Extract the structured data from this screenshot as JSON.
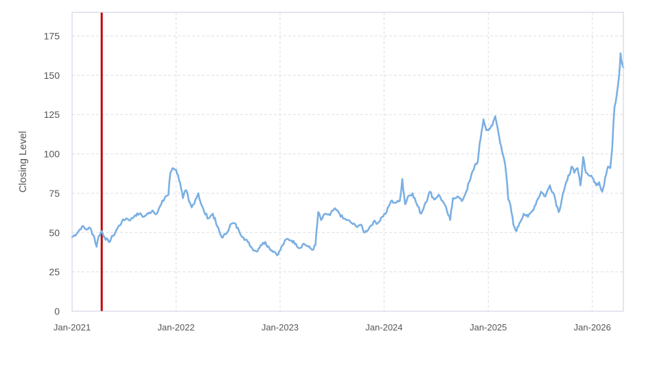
{
  "chart_data": {
    "type": "line",
    "title": "",
    "xlabel": "",
    "ylabel": "Closing Level",
    "xlim": [
      "2021-01-01",
      "2026-04-20"
    ],
    "ylim": [
      0,
      190
    ],
    "yticks": [
      0,
      25,
      50,
      75,
      100,
      125,
      150,
      175
    ],
    "xticks": [
      {
        "date": "2021-01-01",
        "label": "Jan-2021"
      },
      {
        "date": "2022-01-01",
        "label": "Jan-2022"
      },
      {
        "date": "2023-01-01",
        "label": "Jan-2023"
      },
      {
        "date": "2024-01-01",
        "label": "Jan-2024"
      },
      {
        "date": "2025-01-01",
        "label": "Jan-2025"
      },
      {
        "date": "2026-01-01",
        "label": "Jan-2026"
      }
    ],
    "grid": true,
    "legend": "none",
    "marker_line": {
      "date": "2021-04-15",
      "color": "#c00000"
    },
    "series": [
      {
        "color": "#7aafe3",
        "points": [
          [
            "2021-01-01",
            47
          ],
          [
            "2021-01-20",
            50
          ],
          [
            "2021-02-05",
            54
          ],
          [
            "2021-02-20",
            52
          ],
          [
            "2021-03-05",
            53
          ],
          [
            "2021-03-20",
            47
          ],
          [
            "2021-03-28",
            41
          ],
          [
            "2021-04-05",
            48
          ],
          [
            "2021-04-15",
            51
          ],
          [
            "2021-04-25",
            47
          ],
          [
            "2021-05-10",
            44
          ],
          [
            "2021-05-25",
            48
          ],
          [
            "2021-06-10",
            53
          ],
          [
            "2021-06-25",
            57
          ],
          [
            "2021-07-10",
            59
          ],
          [
            "2021-07-25",
            58
          ],
          [
            "2021-08-10",
            61
          ],
          [
            "2021-08-25",
            62
          ],
          [
            "2021-09-10",
            60
          ],
          [
            "2021-09-25",
            62
          ],
          [
            "2021-10-10",
            64
          ],
          [
            "2021-10-25",
            62
          ],
          [
            "2021-11-10",
            68
          ],
          [
            "2021-11-25",
            73
          ],
          [
            "2021-12-05",
            74
          ],
          [
            "2021-12-12",
            88
          ],
          [
            "2021-12-20",
            91
          ],
          [
            "2022-01-01",
            90
          ],
          [
            "2022-01-15",
            82
          ],
          [
            "2022-01-25",
            72
          ],
          [
            "2022-02-05",
            77
          ],
          [
            "2022-02-15",
            70
          ],
          [
            "2022-02-25",
            66
          ],
          [
            "2022-03-10",
            71
          ],
          [
            "2022-03-20",
            75
          ],
          [
            "2022-03-30",
            68
          ],
          [
            "2022-04-10",
            63
          ],
          [
            "2022-04-25",
            59
          ],
          [
            "2022-05-10",
            62
          ],
          [
            "2022-05-25",
            54
          ],
          [
            "2022-06-10",
            47
          ],
          [
            "2022-06-25",
            49
          ],
          [
            "2022-07-10",
            55
          ],
          [
            "2022-07-25",
            56
          ],
          [
            "2022-08-10",
            51
          ],
          [
            "2022-08-25",
            47
          ],
          [
            "2022-09-10",
            44
          ],
          [
            "2022-09-25",
            40
          ],
          [
            "2022-10-10",
            38
          ],
          [
            "2022-10-25",
            42
          ],
          [
            "2022-11-10",
            44
          ],
          [
            "2022-11-25",
            40
          ],
          [
            "2022-12-10",
            38
          ],
          [
            "2022-12-25",
            36
          ],
          [
            "2023-01-10",
            42
          ],
          [
            "2023-01-25",
            46
          ],
          [
            "2023-02-10",
            45
          ],
          [
            "2023-02-25",
            43
          ],
          [
            "2023-03-10",
            40
          ],
          [
            "2023-03-25",
            43
          ],
          [
            "2023-04-10",
            41
          ],
          [
            "2023-04-25",
            39
          ],
          [
            "2023-05-05",
            42
          ],
          [
            "2023-05-15",
            63
          ],
          [
            "2023-05-25",
            58
          ],
          [
            "2023-06-10",
            62
          ],
          [
            "2023-06-25",
            61
          ],
          [
            "2023-07-10",
            65
          ],
          [
            "2023-07-25",
            63
          ],
          [
            "2023-08-10",
            59
          ],
          [
            "2023-08-25",
            58
          ],
          [
            "2023-09-10",
            56
          ],
          [
            "2023-09-25",
            54
          ],
          [
            "2023-10-10",
            55
          ],
          [
            "2023-10-25",
            50
          ],
          [
            "2023-11-10",
            53
          ],
          [
            "2023-11-25",
            57
          ],
          [
            "2023-12-10",
            56
          ],
          [
            "2023-12-25",
            60
          ],
          [
            "2024-01-10",
            63
          ],
          [
            "2024-01-25",
            70
          ],
          [
            "2024-02-10",
            69
          ],
          [
            "2024-02-25",
            70
          ],
          [
            "2024-03-05",
            84
          ],
          [
            "2024-03-15",
            68
          ],
          [
            "2024-03-25",
            73
          ],
          [
            "2024-04-10",
            75
          ],
          [
            "2024-04-25",
            68
          ],
          [
            "2024-05-10",
            62
          ],
          [
            "2024-05-25",
            69
          ],
          [
            "2024-06-10",
            76
          ],
          [
            "2024-06-25",
            71
          ],
          [
            "2024-07-10",
            74
          ],
          [
            "2024-07-25",
            70
          ],
          [
            "2024-08-10",
            63
          ],
          [
            "2024-08-20",
            58
          ],
          [
            "2024-08-30",
            72
          ],
          [
            "2024-09-15",
            73
          ],
          [
            "2024-09-30",
            70
          ],
          [
            "2024-10-15",
            76
          ],
          [
            "2024-10-30",
            84
          ],
          [
            "2024-11-15",
            93
          ],
          [
            "2024-11-25",
            95
          ],
          [
            "2024-12-05",
            110
          ],
          [
            "2024-12-15",
            122
          ],
          [
            "2024-12-25",
            115
          ],
          [
            "2025-01-05",
            116
          ],
          [
            "2025-01-15",
            118
          ],
          [
            "2025-01-25",
            124
          ],
          [
            "2025-02-05",
            114
          ],
          [
            "2025-02-15",
            105
          ],
          [
            "2025-02-25",
            97
          ],
          [
            "2025-03-05",
            87
          ],
          [
            "2025-03-12",
            71
          ],
          [
            "2025-03-20",
            67
          ],
          [
            "2025-03-30",
            55
          ],
          [
            "2025-04-10",
            51
          ],
          [
            "2025-04-20",
            56
          ],
          [
            "2025-05-05",
            62
          ],
          [
            "2025-05-20",
            60
          ],
          [
            "2025-06-05",
            64
          ],
          [
            "2025-06-20",
            70
          ],
          [
            "2025-07-05",
            76
          ],
          [
            "2025-07-20",
            73
          ],
          [
            "2025-08-05",
            80
          ],
          [
            "2025-08-20",
            74
          ],
          [
            "2025-09-05",
            63
          ],
          [
            "2025-09-20",
            75
          ],
          [
            "2025-10-05",
            83
          ],
          [
            "2025-10-20",
            92
          ],
          [
            "2025-10-30",
            88
          ],
          [
            "2025-11-10",
            91
          ],
          [
            "2025-11-20",
            80
          ],
          [
            "2025-11-30",
            98
          ],
          [
            "2025-12-10",
            88
          ],
          [
            "2025-12-25",
            86
          ],
          [
            "2026-01-05",
            84
          ],
          [
            "2026-01-15",
            80
          ],
          [
            "2026-01-25",
            82
          ],
          [
            "2026-02-05",
            76
          ],
          [
            "2026-02-15",
            85
          ],
          [
            "2026-02-25",
            92
          ],
          [
            "2026-03-05",
            91
          ],
          [
            "2026-03-12",
            104
          ],
          [
            "2026-03-20",
            130
          ],
          [
            "2026-03-28",
            138
          ],
          [
            "2026-04-05",
            150
          ],
          [
            "2026-04-10",
            164
          ],
          [
            "2026-04-15",
            158
          ],
          [
            "2026-04-20",
            155
          ]
        ]
      }
    ]
  }
}
